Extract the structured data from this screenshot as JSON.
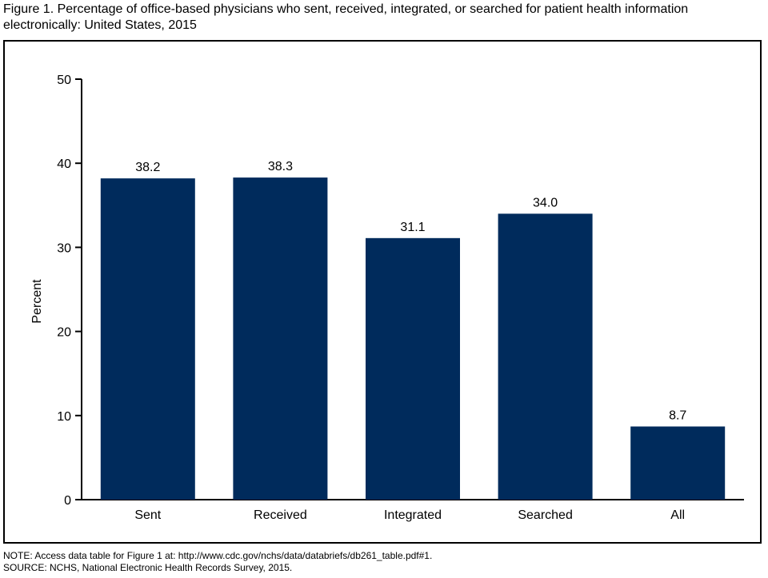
{
  "title": "Figure 1. Percentage of office-based physicians who sent, received, integrated, or searched for patient health information electronically: United States, 2015",
  "notes": {
    "note": "NOTE: Access data table for Figure 1 at: http://www.cdc.gov/nchs/data/databriefs/db261_table.pdf#1.",
    "source": "SOURCE: NCHS, National Electronic Health Records Survey, 2015."
  },
  "chart_data": {
    "type": "bar",
    "title": "",
    "xlabel": "",
    "ylabel": "Percent",
    "categories": [
      "Sent",
      "Received",
      "Integrated",
      "Searched",
      "All"
    ],
    "values": [
      38.2,
      38.3,
      31.1,
      34.0,
      8.7
    ],
    "value_labels": [
      "38.2",
      "38.3",
      "31.1",
      "34.0",
      "8.7"
    ],
    "ylim": [
      0,
      50
    ],
    "yticks": [
      0,
      10,
      20,
      30,
      40,
      50
    ],
    "grid": false,
    "bar_color": "#002b5c"
  }
}
